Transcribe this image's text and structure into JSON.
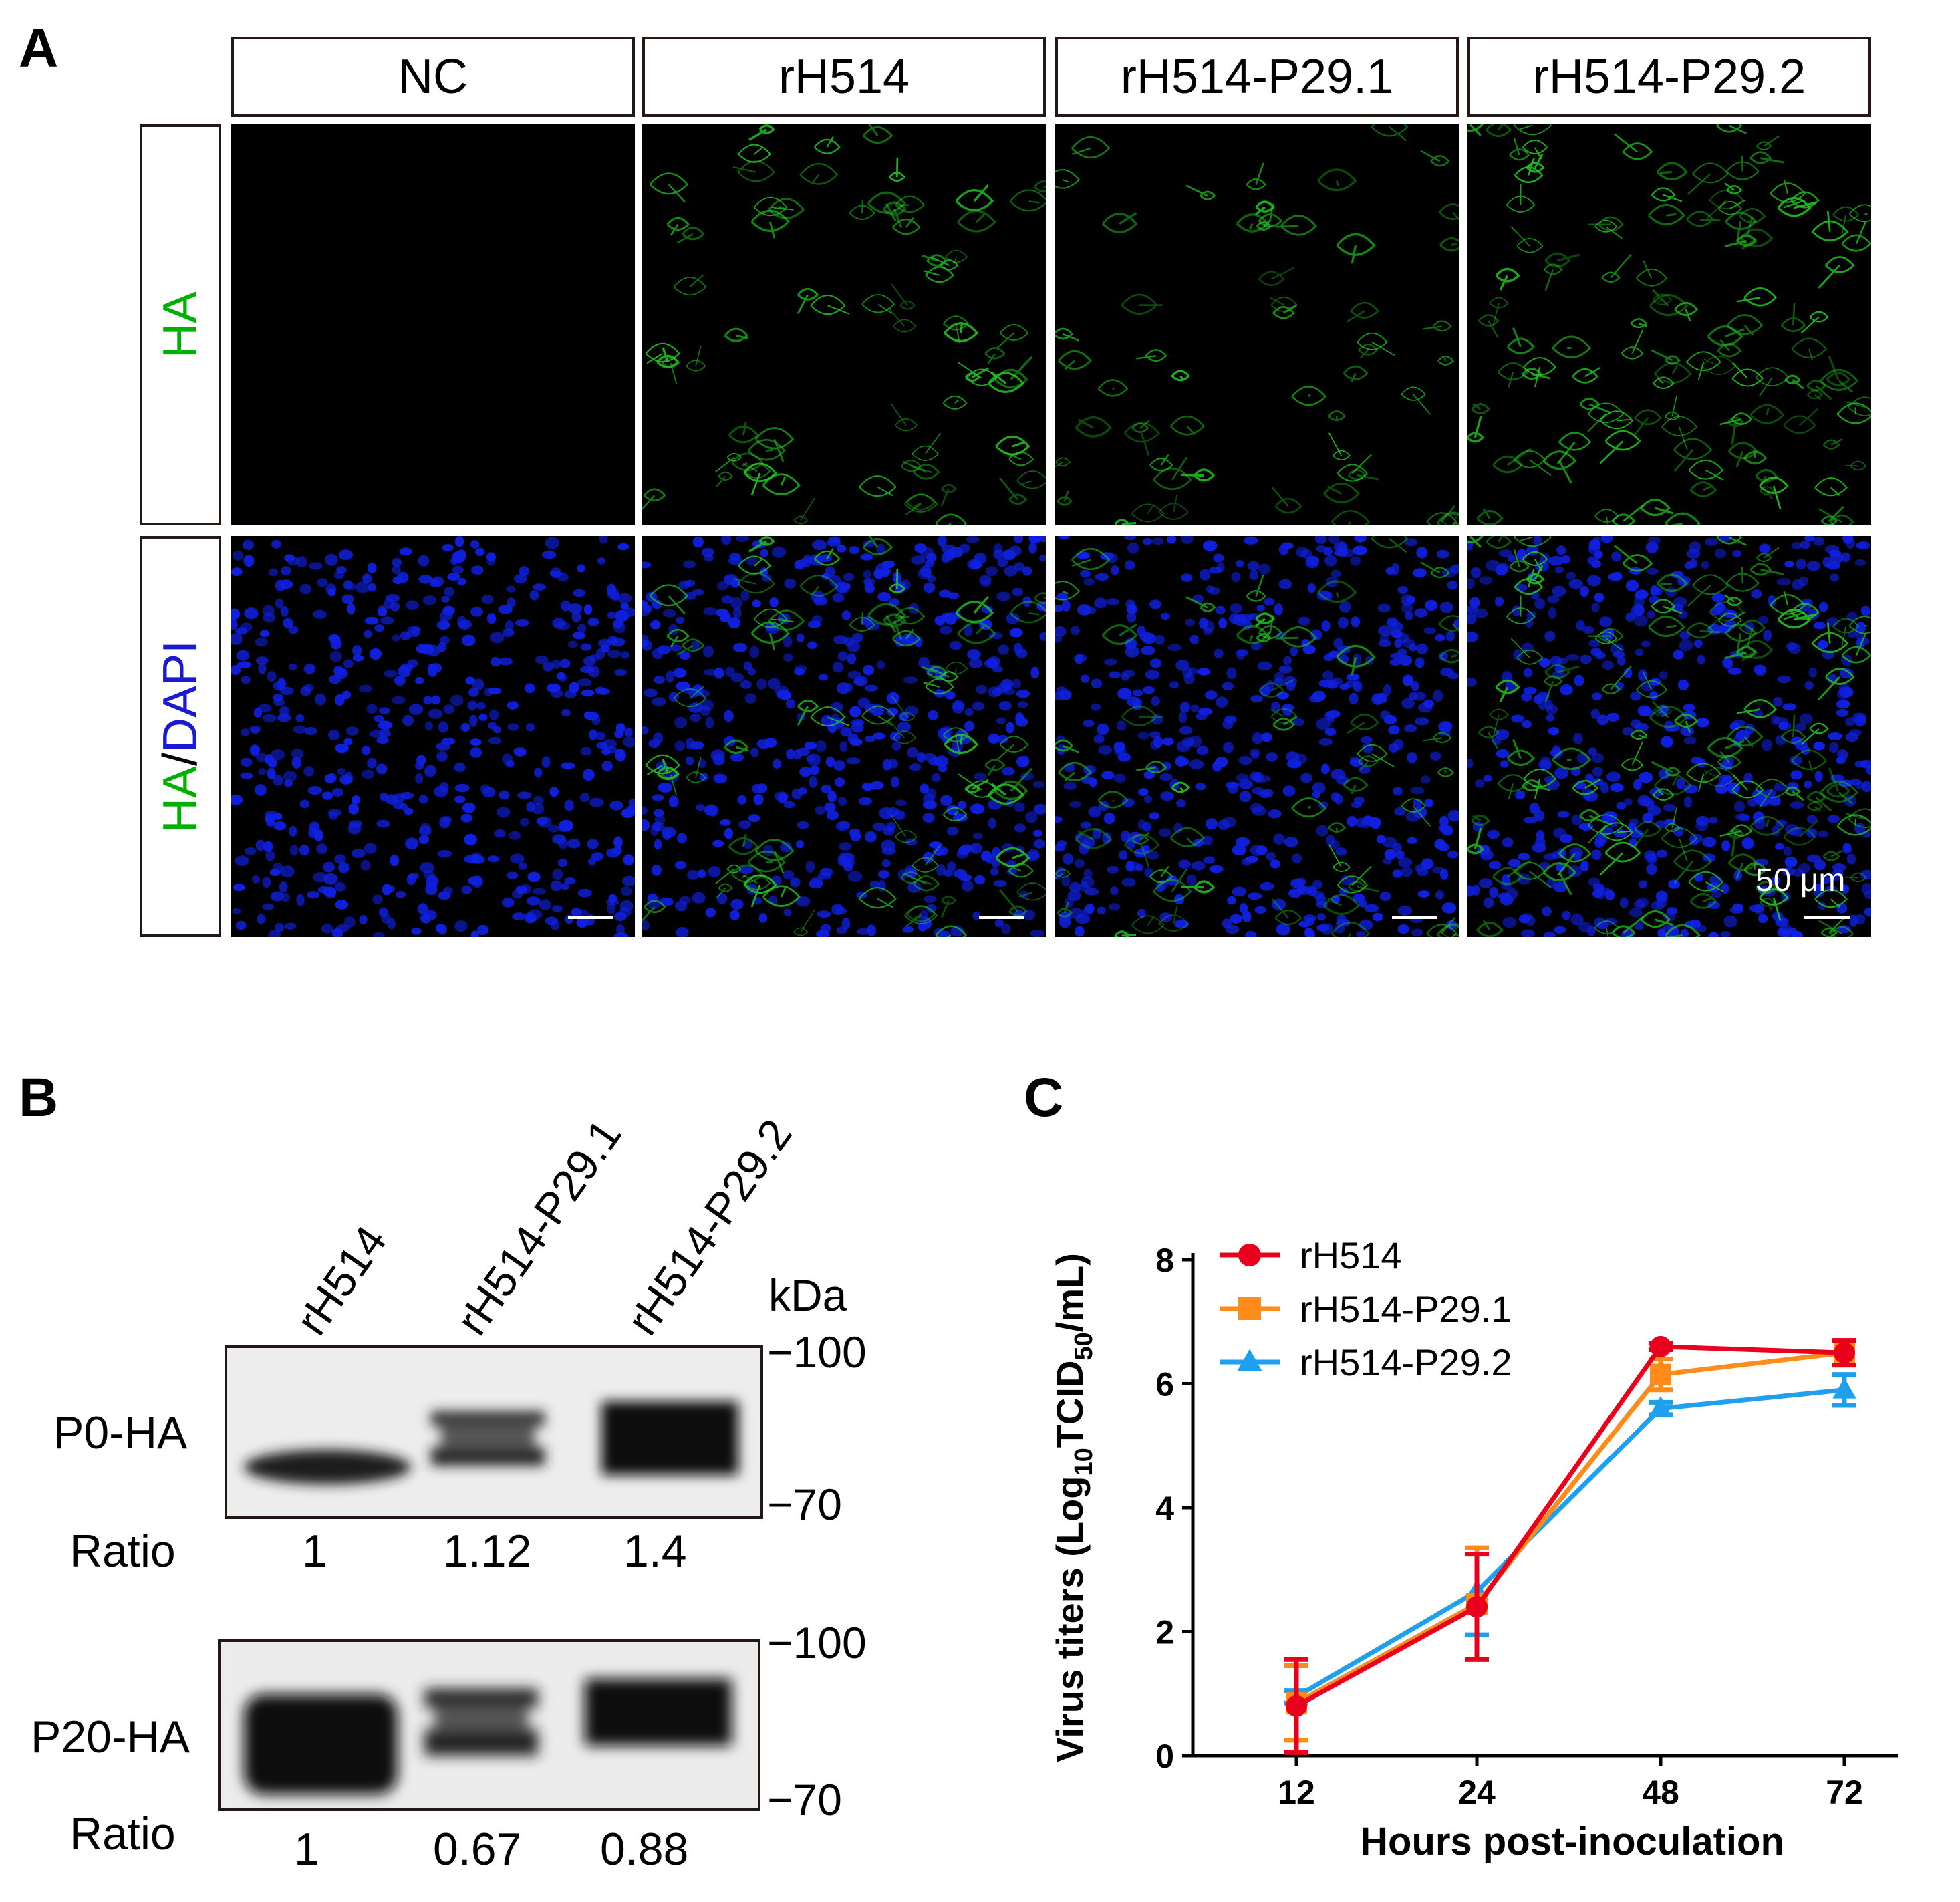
{
  "panel_a": {
    "letter": "A",
    "columns": [
      "NC",
      "rH514",
      "rH514-P29.1",
      "rH514-P29.2"
    ],
    "rows": {
      "ha": {
        "text": "HA",
        "color": "#00b000"
      },
      "merge": {
        "parts": [
          {
            "text": "HA",
            "color": "#00b000"
          },
          {
            "text": "/",
            "color": "#000000"
          },
          {
            "text": "DAPI",
            "color": "#1a1ad0"
          }
        ]
      }
    },
    "scale_bar_label": "50 μm",
    "colors": {
      "ha_signal": "#22c822",
      "dapi_signal": "#1020e0",
      "background": "#000000"
    }
  },
  "panel_b": {
    "letter": "B",
    "lanes": [
      "rH514",
      "rH514-P29.1",
      "rH514-P29.2"
    ],
    "kda_label": "kDa",
    "blots": [
      {
        "label": "P0-HA",
        "markers": [
          "−100",
          "−70"
        ],
        "ratio_label": "Ratio",
        "ratios": [
          "1",
          "1.12",
          "1.4"
        ]
      },
      {
        "label": "P20-HA",
        "markers": [
          "−100",
          "−70"
        ],
        "ratio_label": "Ratio",
        "ratios": [
          "1",
          "0.67",
          "0.88"
        ]
      }
    ]
  },
  "panel_c": {
    "letter": "C",
    "chart_data": {
      "type": "line",
      "categories": [
        "12",
        "24",
        "48",
        "72"
      ],
      "xlabel": "Hours post-inoculation",
      "ylabel_main": "Virus titers (Log",
      "ylabel_sub1": "10",
      "ylabel_mid": "TCID",
      "ylabel_sub2": "50",
      "ylabel_end": "/mL)",
      "ylim": [
        0,
        8
      ],
      "yticks": [
        "0",
        "2",
        "4",
        "6",
        "8"
      ],
      "legend_position": "top-left",
      "series": [
        {
          "name": "rH514",
          "color": "#e8001c",
          "marker": "circle",
          "values": [
            0.8,
            2.4,
            6.6,
            6.5
          ],
          "err": [
            0.75,
            0.85,
            0.05,
            0.2
          ]
        },
        {
          "name": "rH514-P29.1",
          "color": "#ff8c1a",
          "marker": "square",
          "values": [
            0.85,
            2.45,
            6.15,
            6.5
          ],
          "err": [
            0.6,
            0.9,
            0.25,
            0.2
          ]
        },
        {
          "name": "rH514-P29.2",
          "color": "#1ea0ee",
          "marker": "triangle",
          "values": [
            0.95,
            2.65,
            5.6,
            5.9
          ],
          "err": [
            0.1,
            0.7,
            0.1,
            0.25
          ]
        }
      ]
    }
  }
}
